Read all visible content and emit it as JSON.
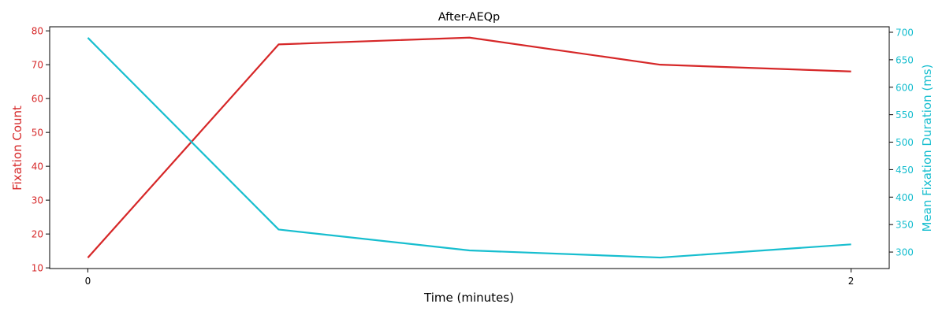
{
  "chart_data": {
    "type": "line",
    "title": "After-AEQp",
    "xlabel": "Time (minutes)",
    "x": [
      0,
      0.5,
      1,
      1.5,
      2
    ],
    "xlim": [
      -0.1,
      2.1
    ],
    "xticks": [
      "0",
      "2"
    ],
    "grid": false,
    "legend": "none",
    "series": [
      {
        "axis": "left",
        "values": [
          13,
          76,
          78,
          70,
          68
        ],
        "color": "#d62728"
      },
      {
        "axis": "right",
        "values": [
          690,
          341,
          303,
          290,
          314
        ],
        "color": "#17becf"
      }
    ],
    "left_axis": {
      "label": "Fixation Count",
      "color": "#d62728",
      "ylim": [
        9.8,
        81.2
      ],
      "ticks": [
        10,
        20,
        30,
        40,
        50,
        60,
        70,
        80
      ]
    },
    "right_axis": {
      "label": "Mean Fixation Duration (ms)",
      "color": "#17becf",
      "ylim": [
        270,
        710
      ],
      "ticks": [
        300,
        350,
        400,
        450,
        500,
        550,
        600,
        650,
        700
      ]
    }
  }
}
